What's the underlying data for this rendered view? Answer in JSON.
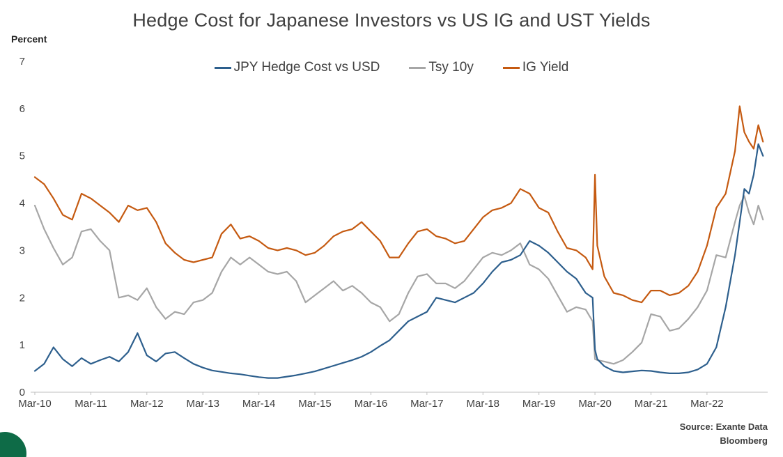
{
  "chart_data": {
    "type": "line",
    "title": "Hedge Cost for Japanese Investors vs US IG and UST Yields",
    "ylabel": "Percent",
    "xlabel": "",
    "grid": false,
    "legend_position": "top-center",
    "x_unit": "months since Mar-2010",
    "x_range": [
      0,
      157
    ],
    "y_range": [
      0,
      7
    ],
    "y_ticks": [
      0,
      1,
      2,
      3,
      4,
      5,
      6,
      7
    ],
    "x_ticks": [
      {
        "label": "Mar-10",
        "month": 0
      },
      {
        "label": "Mar-11",
        "month": 12
      },
      {
        "label": "Mar-12",
        "month": 24
      },
      {
        "label": "Mar-13",
        "month": 36
      },
      {
        "label": "Mar-14",
        "month": 48
      },
      {
        "label": "Mar-15",
        "month": 60
      },
      {
        "label": "Mar-16",
        "month": 72
      },
      {
        "label": "Mar-17",
        "month": 84
      },
      {
        "label": "Mar-18",
        "month": 96
      },
      {
        "label": "Mar-19",
        "month": 108
      },
      {
        "label": "Mar-20",
        "month": 120
      },
      {
        "label": "Mar-21",
        "month": 132
      },
      {
        "label": "Mar-22",
        "month": 144
      }
    ],
    "x": [
      0,
      2,
      4,
      6,
      8,
      10,
      12,
      14,
      16,
      18,
      20,
      22,
      24,
      26,
      28,
      30,
      32,
      34,
      36,
      38,
      40,
      42,
      44,
      46,
      48,
      50,
      52,
      54,
      56,
      58,
      60,
      62,
      64,
      66,
      68,
      70,
      72,
      74,
      76,
      78,
      80,
      82,
      84,
      86,
      88,
      90,
      92,
      94,
      96,
      98,
      100,
      102,
      104,
      106,
      108,
      110,
      112,
      114,
      116,
      118,
      119.5,
      120,
      120.5,
      122,
      124,
      126,
      128,
      130,
      132,
      134,
      136,
      138,
      140,
      142,
      144,
      146,
      148,
      150,
      151,
      152,
      153,
      154,
      155,
      156
    ],
    "series": [
      {
        "name": "JPY Hedge Cost vs USD",
        "color": "#2d5f8d",
        "values": [
          0.45,
          0.6,
          0.95,
          0.7,
          0.55,
          0.72,
          0.6,
          0.68,
          0.75,
          0.65,
          0.85,
          1.25,
          0.78,
          0.65,
          0.82,
          0.85,
          0.72,
          0.6,
          0.52,
          0.46,
          0.43,
          0.4,
          0.38,
          0.35,
          0.32,
          0.3,
          0.3,
          0.33,
          0.36,
          0.4,
          0.44,
          0.5,
          0.56,
          0.62,
          0.68,
          0.75,
          0.85,
          0.98,
          1.1,
          1.3,
          1.5,
          1.6,
          1.7,
          2.0,
          1.95,
          1.9,
          2.0,
          2.1,
          2.3,
          2.55,
          2.75,
          2.8,
          2.9,
          3.2,
          3.1,
          2.95,
          2.75,
          2.55,
          2.4,
          2.1,
          2.0,
          0.9,
          0.7,
          0.55,
          0.45,
          0.42,
          0.44,
          0.46,
          0.45,
          0.42,
          0.4,
          0.4,
          0.42,
          0.48,
          0.6,
          0.95,
          1.8,
          2.9,
          3.6,
          4.3,
          4.2,
          4.6,
          5.25,
          5.0
        ]
      },
      {
        "name": "Tsy 10y",
        "color": "#a6a6a6",
        "values": [
          3.95,
          3.45,
          3.05,
          2.7,
          2.85,
          3.4,
          3.45,
          3.2,
          3.0,
          2.0,
          2.05,
          1.95,
          2.2,
          1.8,
          1.55,
          1.7,
          1.65,
          1.9,
          1.95,
          2.1,
          2.55,
          2.85,
          2.7,
          2.85,
          2.7,
          2.55,
          2.5,
          2.55,
          2.35,
          1.9,
          2.05,
          2.2,
          2.35,
          2.15,
          2.25,
          2.1,
          1.9,
          1.8,
          1.5,
          1.65,
          2.1,
          2.45,
          2.5,
          2.3,
          2.3,
          2.2,
          2.35,
          2.6,
          2.85,
          2.95,
          2.9,
          3.0,
          3.15,
          2.7,
          2.6,
          2.4,
          2.05,
          1.7,
          1.8,
          1.75,
          1.5,
          0.7,
          0.68,
          0.65,
          0.6,
          0.68,
          0.85,
          1.05,
          1.65,
          1.6,
          1.3,
          1.35,
          1.55,
          1.8,
          2.15,
          2.9,
          2.85,
          3.6,
          3.95,
          4.15,
          3.8,
          3.55,
          3.95,
          3.65
        ]
      },
      {
        "name": "IG Yield",
        "color": "#c55a11",
        "values": [
          4.55,
          4.4,
          4.1,
          3.75,
          3.65,
          4.2,
          4.1,
          3.95,
          3.8,
          3.6,
          3.95,
          3.85,
          3.9,
          3.6,
          3.15,
          2.95,
          2.8,
          2.75,
          2.8,
          2.85,
          3.35,
          3.55,
          3.25,
          3.3,
          3.2,
          3.05,
          3.0,
          3.05,
          3.0,
          2.9,
          2.95,
          3.1,
          3.3,
          3.4,
          3.45,
          3.6,
          3.4,
          3.2,
          2.85,
          2.85,
          3.15,
          3.4,
          3.45,
          3.3,
          3.25,
          3.15,
          3.2,
          3.45,
          3.7,
          3.85,
          3.9,
          4.0,
          4.3,
          4.2,
          3.9,
          3.8,
          3.4,
          3.05,
          3.0,
          2.85,
          2.6,
          4.6,
          3.1,
          2.45,
          2.1,
          2.05,
          1.95,
          1.9,
          2.15,
          2.15,
          2.05,
          2.1,
          2.25,
          2.55,
          3.1,
          3.9,
          4.2,
          5.1,
          6.05,
          5.5,
          5.3,
          5.15,
          5.65,
          5.3
        ]
      }
    ]
  },
  "source": {
    "line1": "Source: Exante Data",
    "line2": "Bloomberg"
  },
  "decor": {
    "corner_circle_color": "#0e6b47"
  }
}
